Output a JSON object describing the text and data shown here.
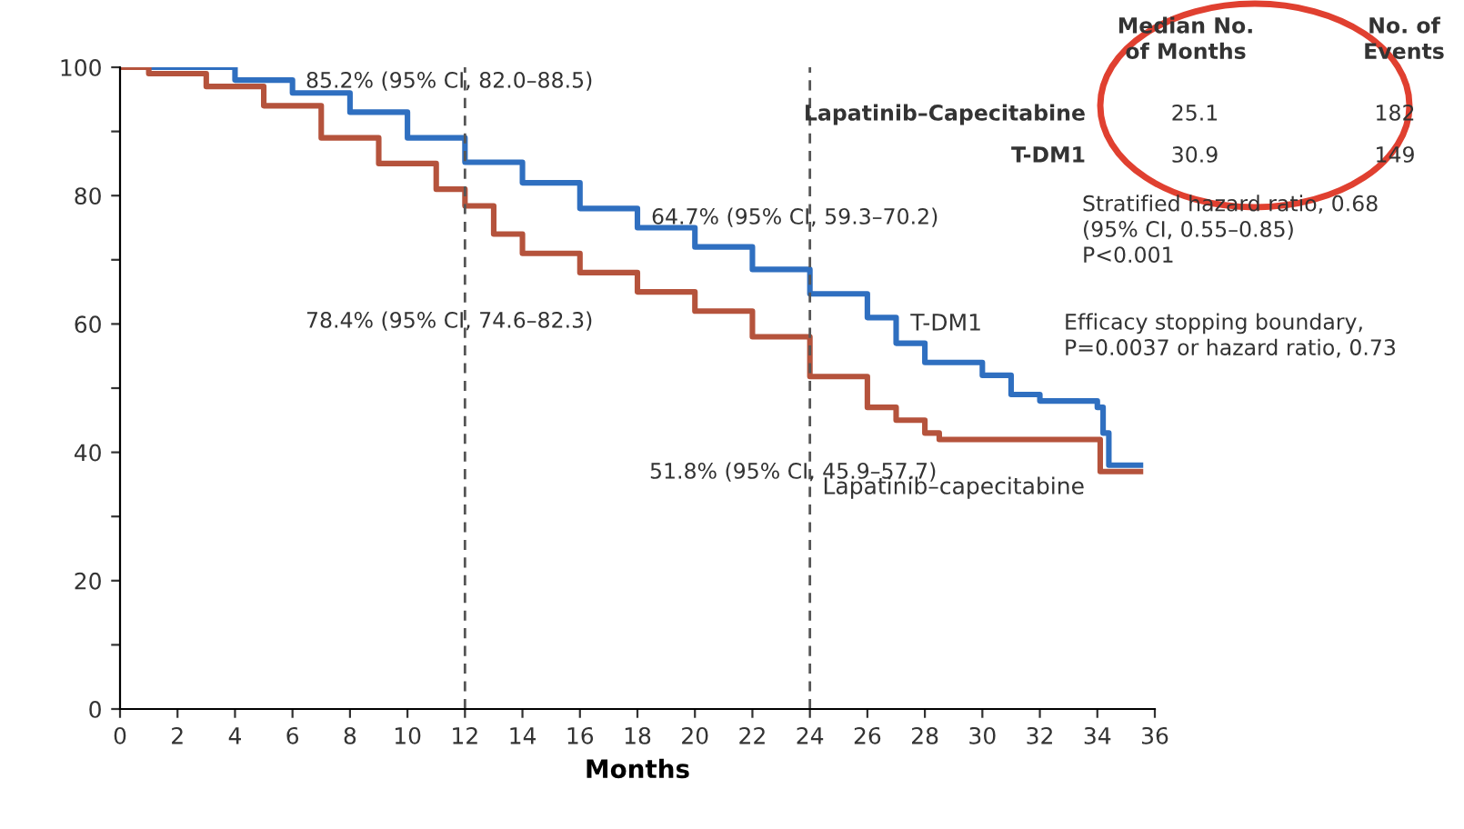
{
  "chart_data": {
    "type": "step",
    "xlabel": "Months",
    "xlim": [
      0,
      36
    ],
    "xticks": [
      0,
      2,
      4,
      6,
      8,
      10,
      12,
      14,
      16,
      18,
      20,
      22,
      24,
      26,
      28,
      30,
      32,
      34,
      36
    ],
    "ylim": [
      0,
      100
    ],
    "yticks": [
      0,
      {
        "value": 10,
        "label": null
      },
      20,
      {
        "value": 30,
        "label": null
      },
      40,
      {
        "value": 50,
        "label": null
      },
      60,
      {
        "value": 70,
        "label": null
      },
      80,
      {
        "value": 90,
        "label": null
      },
      100
    ],
    "grid": false,
    "legend": false,
    "marker": "none",
    "line_style": "solid",
    "series": [
      {
        "name": "T-DM1",
        "color": "#2f6fc0",
        "x": [
          0,
          2,
          4,
          6,
          8,
          10,
          12,
          14,
          16,
          18,
          20,
          22,
          24,
          26,
          27,
          28,
          30,
          31,
          32,
          34,
          34.2,
          34.4,
          35.5
        ],
        "values": [
          100,
          100,
          98,
          96,
          93,
          89,
          85.2,
          82,
          78,
          75,
          72,
          68.5,
          64.7,
          61,
          57,
          54,
          52,
          49,
          48,
          47,
          43,
          38,
          38
        ]
      },
      {
        "name": "Lapatinib–capecitabine",
        "color": "#b5533c",
        "x": [
          0,
          1,
          3,
          5,
          7,
          9,
          11,
          12,
          13,
          14,
          16,
          18,
          20,
          22,
          24,
          26,
          27,
          28,
          28.5,
          34,
          34.1,
          35.5
        ],
        "values": [
          100,
          99,
          97,
          94,
          89,
          85,
          81,
          78.4,
          74,
          71,
          68,
          65,
          62,
          58,
          51.8,
          47,
          45,
          43,
          42,
          42,
          37,
          37
        ]
      }
    ],
    "ref_lines": [
      {
        "axis": "x",
        "value": 12,
        "line_style": "dashed",
        "color": "#555555"
      },
      {
        "axis": "x",
        "value": 24,
        "line_style": "dashed",
        "color": "#555555"
      }
    ],
    "annotations": [
      "85.2% (95% CI, 82.0–88.5)",
      "78.4% (95% CI, 74.6–82.3)",
      "64.7% (95% CI, 59.3–70.2)",
      "51.8% (95% CI, 45.9–57.7)",
      "Median No.\nof Months",
      "No. of\nEvents",
      "Lapatinib–Capecitabine",
      "25.1",
      "182",
      "T-DM1",
      "30.9",
      "149",
      "Stratified hazard ratio, 0.68\n(95% CI, 0.55–0.85)\nP<0.001",
      "Efficacy stopping boundary,\nP=0.0037 or hazard ratio, 0.73"
    ]
  }
}
